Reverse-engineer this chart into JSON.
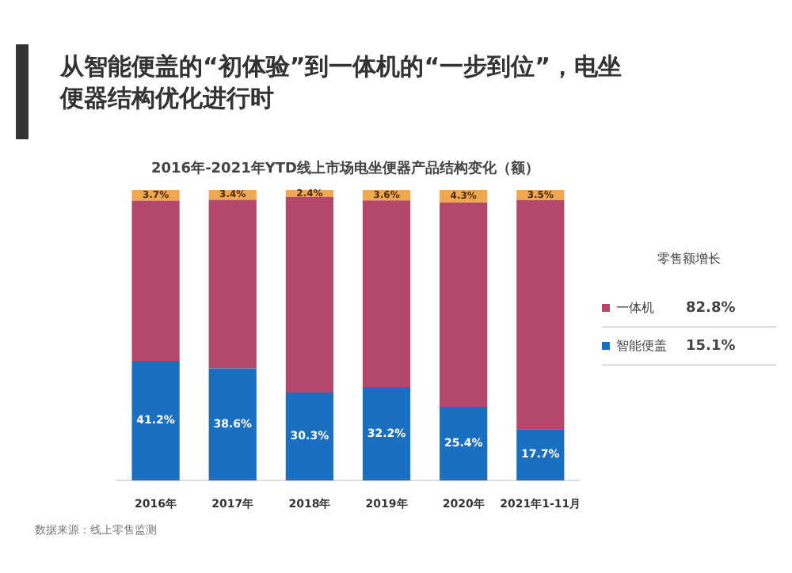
{
  "chart_data": {
    "type": "bar",
    "stacked": true,
    "title": "从智能便盖的“初体验”到一体机的“一步到位”，电坐便器结构优化进行时",
    "subtitle": "2016年-2021年YTD线上市场电坐便器产品结构变化（额）",
    "legend_title": "零售额增长",
    "legend": "right",
    "tick_labels": "x",
    "ylim": [
      0,
      100
    ],
    "categories": [
      "2016年",
      "2017年",
      "2018年",
      "2019年",
      "2020年",
      "2021年1-11月"
    ],
    "series": [
      {
        "name": "智能便盖",
        "color": "#1a6fc0",
        "values": [
          41.2,
          38.6,
          30.3,
          32.2,
          25.4,
          17.7
        ],
        "value_labels": [
          "41.2%",
          "38.6%",
          "30.3%",
          "32.2%",
          "25.4%",
          "17.7%"
        ]
      },
      {
        "name": "一体机",
        "color": "#b5476a",
        "values": [
          55.1,
          58.0,
          67.3,
          64.2,
          70.3,
          78.8
        ]
      },
      {
        "color": "#f0a850",
        "values": [
          3.7,
          3.4,
          2.4,
          3.6,
          4.3,
          3.5
        ],
        "value_labels": [
          "3.7%",
          "3.4%",
          "2.4%",
          "3.6%",
          "4.3%",
          "3.5%"
        ]
      }
    ],
    "annotations": [
      "15.1%",
      "82.8%",
      "数据来源：线上零售监测"
    ]
  }
}
